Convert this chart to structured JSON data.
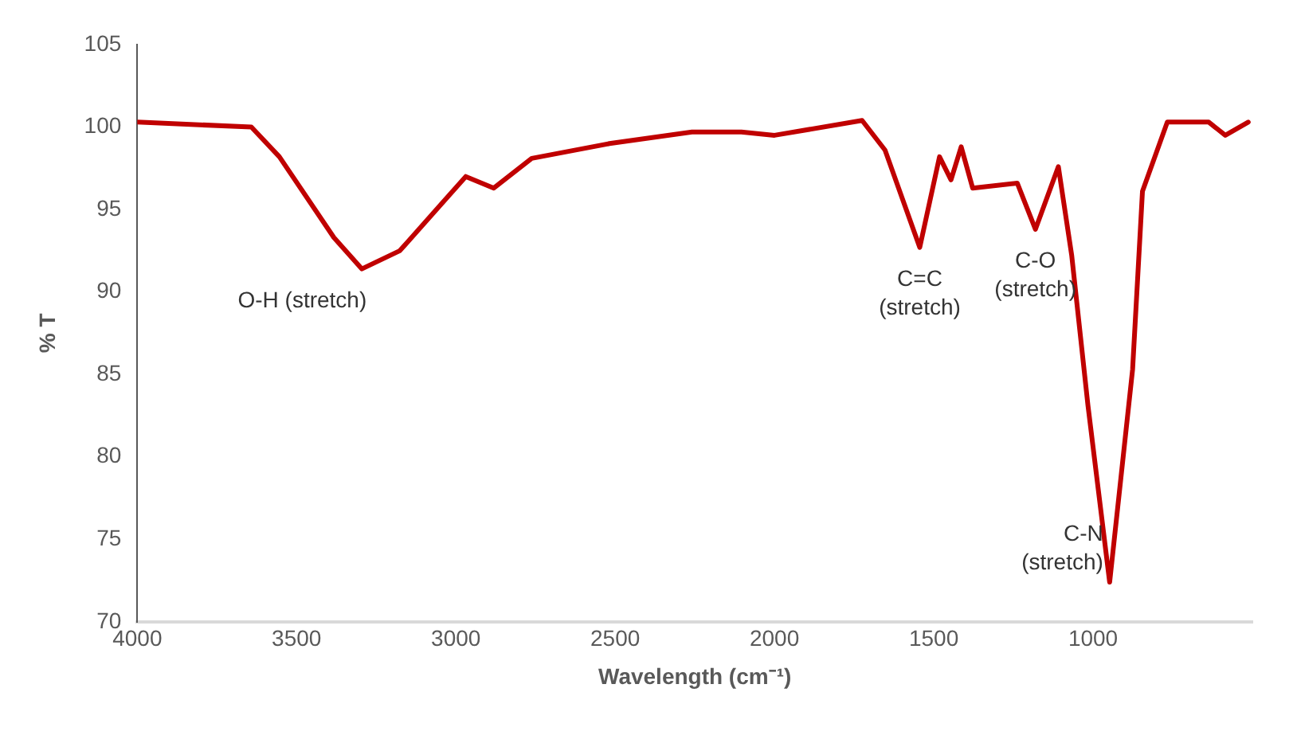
{
  "chart_data": {
    "type": "line",
    "xlabel": "Wavelength (cm⁻¹)",
    "ylabel": "% T",
    "x": [
      4000,
      3642,
      3554,
      3383,
      3295,
      3176,
      2969,
      2881,
      2762,
      2518,
      2259,
      2104,
      2000,
      1725,
      1653,
      1544,
      1482,
      1446,
      1414,
      1378,
      1238,
      1181,
      1109,
      1067,
      1016,
      948,
      876,
      845,
      767,
      637,
      585,
      513
    ],
    "series": [
      {
        "color": "#c00000",
        "values": [
          100.3,
          100,
          98.2,
          93.3,
          91.4,
          92.5,
          97.0,
          96.3,
          98.1,
          99,
          99.7,
          99.7,
          99.5,
          100.4,
          98.6,
          92.7,
          98.2,
          96.8,
          98.8,
          96.3,
          96.6,
          93.8,
          97.6,
          92.2,
          83.1,
          72.4,
          85.3,
          96.1,
          100.3,
          100.3,
          99.5,
          100.3
        ]
      }
    ],
    "xlim": [
      4000,
      500
    ],
    "xticks": [
      4000,
      3500,
      3000,
      2500,
      2000,
      1500,
      1000
    ],
    "ylim": [
      70,
      105
    ],
    "yticks": [
      70,
      75,
      80,
      85,
      90,
      95,
      100,
      105
    ],
    "grid": false,
    "legend": false,
    "marker": "none",
    "line_style": "solid",
    "annotations": [
      {
        "text": "O-H (stretch)",
        "x": 3295,
        "y": 91.4
      },
      {
        "text": "C=C\n(stretch)",
        "x": 1544,
        "y": 92.7
      },
      {
        "text": "C-O\n(stretch)",
        "x": 1181,
        "y": 93.8
      },
      {
        "text": "C-N\n(stretch)",
        "x": 948,
        "y": 72.4
      }
    ]
  }
}
